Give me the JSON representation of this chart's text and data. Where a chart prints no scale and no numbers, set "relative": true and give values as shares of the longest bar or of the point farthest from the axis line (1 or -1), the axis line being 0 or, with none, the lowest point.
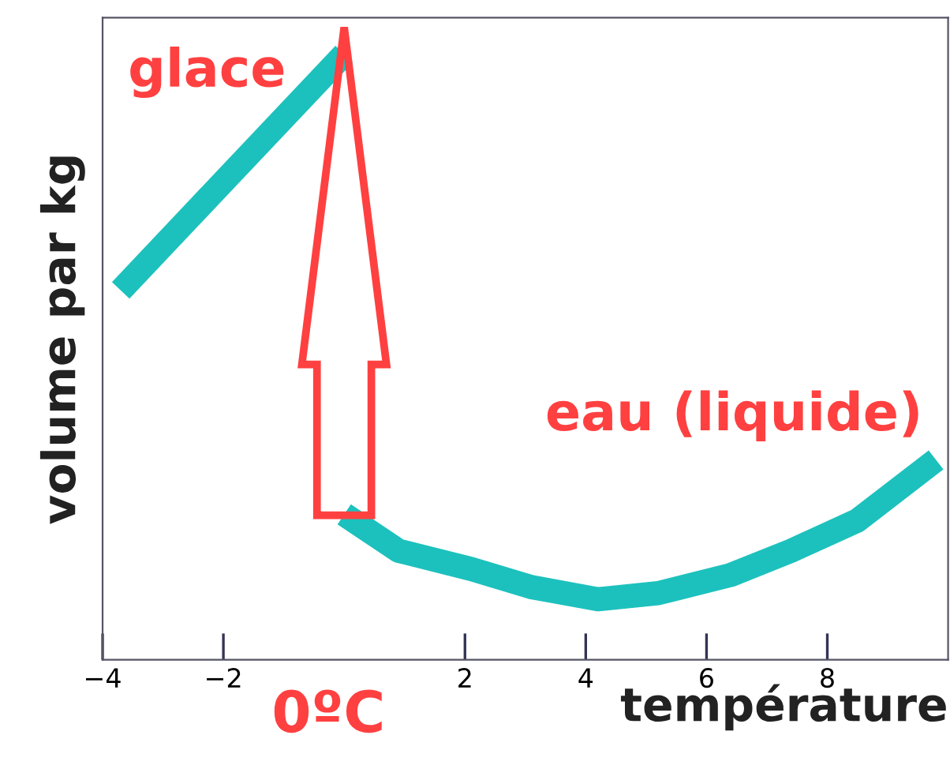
{
  "chart_data": {
    "type": "line",
    "xlabel": "température",
    "ylabel": "volume par kg",
    "relative": true,
    "xlim": [
      -4,
      10
    ],
    "xticks": [
      -4,
      -2,
      2,
      4,
      6,
      8
    ],
    "series": [
      {
        "color": "#1cc1bd",
        "x": [
          -3.7,
          0
        ],
        "values": [
          0.61,
          1
        ]
      },
      {
        "color": "#1cc1bd",
        "x": [
          0,
          0.9,
          2.1,
          3.1,
          4.2,
          5.2,
          6.4,
          7.4,
          8.5,
          9.8
        ],
        "values": [
          0.24,
          0.18,
          0.15,
          0.12,
          0.1,
          0.11,
          0.14,
          0.18,
          0.23,
          0.33
        ]
      }
    ],
    "annotations": [
      "glace",
      "eau (liquide)",
      "0ºC"
    ],
    "grid": false,
    "legend": false,
    "marker": "none",
    "line_style": "solid"
  }
}
